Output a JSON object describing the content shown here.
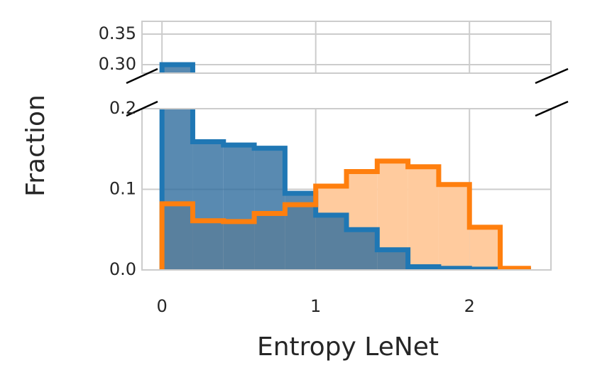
{
  "chart_data": {
    "type": "histogram",
    "xlabel": "Entropy LeNet",
    "ylabel": "Fraction",
    "bins": [
      0,
      0.2,
      0.4,
      0.6,
      0.8,
      1.0,
      1.2,
      1.4,
      1.6,
      1.8,
      2.0,
      2.2,
      2.4
    ],
    "xlim": [
      -0.13,
      2.53
    ],
    "xticks": [
      0,
      1,
      2
    ],
    "panels": [
      {
        "ylim": [
          0.286,
          0.371
        ],
        "yticks": [
          {
            "value": 0.3,
            "label": "0.30"
          },
          0.35
        ]
      },
      {
        "ylim": [
          0,
          0.2
        ],
        "yticks": [
          {
            "value": 0,
            "label": "0.0"
          },
          0.1,
          0.2
        ]
      }
    ],
    "grid": true,
    "series": [
      {
        "color": "#1f77b4",
        "fill": "#2f6d9e",
        "values": [
          0.3,
          0.159,
          0.155,
          0.151,
          0.095,
          0.068,
          0.05,
          0.025,
          0.004,
          0.002,
          0.001,
          0
        ]
      },
      {
        "color": "#ff7f0e",
        "fill": "#ffcb9e",
        "values": [
          0.082,
          0.061,
          0.06,
          0.07,
          0.081,
          0.104,
          0.122,
          0.135,
          0.128,
          0.106,
          0.053,
          0.002
        ]
      }
    ]
  }
}
